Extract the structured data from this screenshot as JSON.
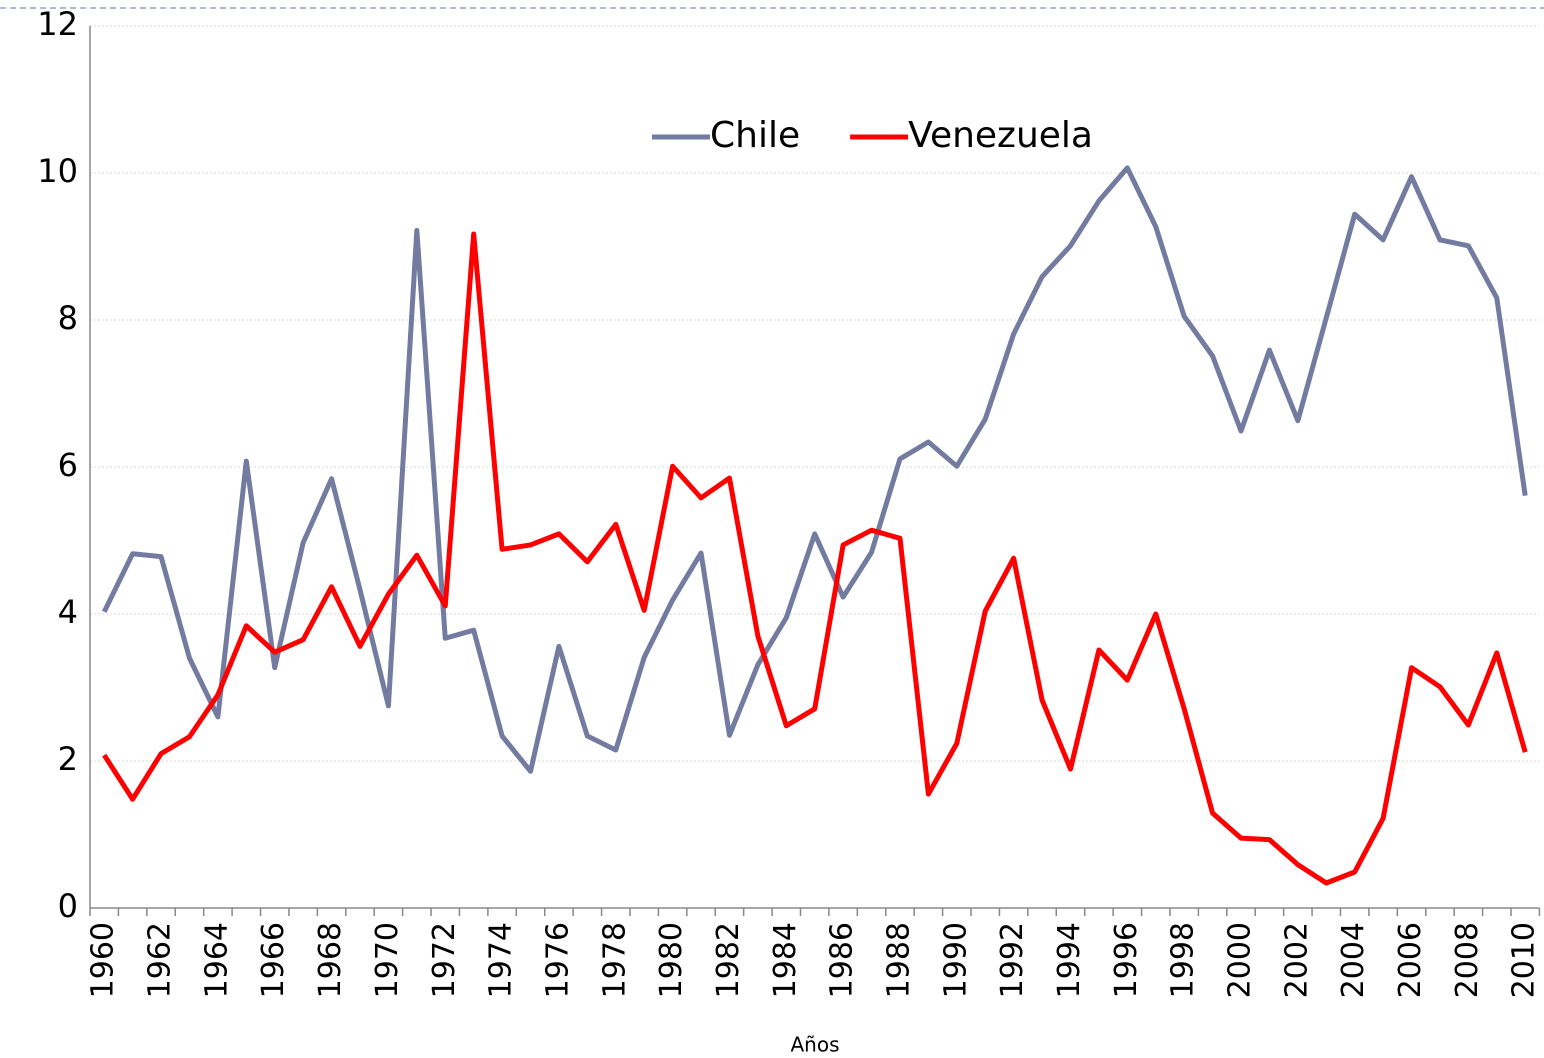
{
  "chart_data": {
    "type": "line",
    "x_label": "Años",
    "categories": [
      "1960",
      null,
      "1962",
      null,
      "1964",
      null,
      "1966",
      null,
      "1968",
      null,
      "1970",
      null,
      "1972",
      null,
      "1974",
      null,
      "1976",
      null,
      "1978",
      null,
      "1980",
      null,
      "1982",
      null,
      "1984",
      null,
      "1986",
      null,
      "1988",
      null,
      "1990",
      null,
      "1992",
      null,
      "1994",
      null,
      "1996",
      null,
      "1998",
      null,
      "2000",
      null,
      "2002",
      null,
      "2004",
      null,
      "2006",
      null,
      "2008",
      null,
      "2010"
    ],
    "series": [
      {
        "name": "Chile",
        "color": "#737ba0",
        "values": [
          4.03,
          4.82,
          4.78,
          3.4,
          2.6,
          6.08,
          3.27,
          4.97,
          5.84,
          4.33,
          2.75,
          9.22,
          3.67,
          3.78,
          2.34,
          1.86,
          3.56,
          2.34,
          2.15,
          3.41,
          4.19,
          4.83,
          2.35,
          3.31,
          3.95,
          5.09,
          4.23,
          4.84,
          6.11,
          6.34,
          6.01,
          6.65,
          7.81,
          8.59,
          9.01,
          9.62,
          10.07,
          9.27,
          8.05,
          7.51,
          6.49,
          7.59,
          6.63,
          8.03,
          9.44,
          9.09,
          9.95,
          9.09,
          9.01,
          8.3,
          5.61
        ]
      },
      {
        "name": "Venezuela",
        "color": "#ff0000",
        "values": [
          2.08,
          1.48,
          2.1,
          2.33,
          2.9,
          3.84,
          3.48,
          3.65,
          4.37,
          3.56,
          4.27,
          4.8,
          4.11,
          9.17,
          4.88,
          4.94,
          5.09,
          4.71,
          5.22,
          4.05,
          6.01,
          5.58,
          5.85,
          3.7,
          2.48,
          2.71,
          4.94,
          5.14,
          5.03,
          1.55,
          2.24,
          4.04,
          4.76,
          2.83,
          1.89,
          3.51,
          3.1,
          4.0,
          2.71,
          1.29,
          0.95,
          0.93,
          0.59,
          0.34,
          0.49,
          1.22,
          3.27,
          3.01,
          2.49,
          3.47,
          2.12
        ]
      }
    ],
    "ylim": [
      0,
      12
    ],
    "yticks": [
      0,
      2,
      4,
      6,
      8,
      10,
      12
    ],
    "grid": true,
    "legend": "top"
  }
}
